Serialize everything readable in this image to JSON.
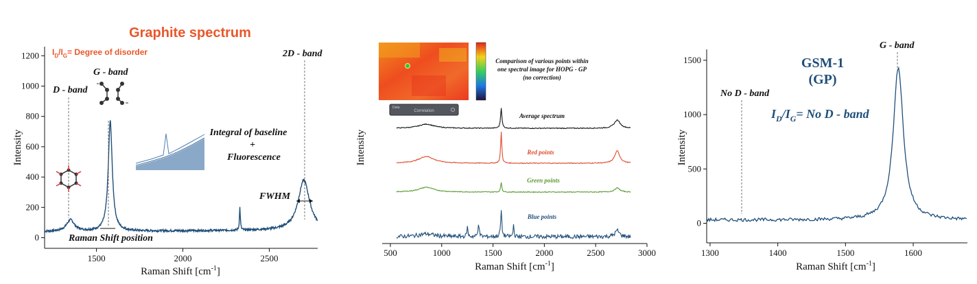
{
  "colors": {
    "series": "#1f4e79",
    "orange": "#e8572a",
    "red": "#e04a2a",
    "green": "#5a9a32",
    "blue_title": "#1f4e79",
    "black": "#111111"
  },
  "chart_data": [
    {
      "type": "line",
      "title": "Graphite spectrum",
      "xlabel": "Raman Shift [cm",
      "xlabel_sup": "-1",
      "xlabel_end": "]",
      "ylabel": "Intensity",
      "xlim": [
        1200,
        2780
      ],
      "ylim": [
        -70,
        1260
      ],
      "xticks": [
        1500,
        2000,
        2500
      ],
      "yticks": [
        0,
        200,
        400,
        600,
        800,
        1000,
        1200
      ],
      "baseline": 40,
      "peaks": [
        {
          "center": 1350,
          "height": 75,
          "width": 28
        },
        {
          "center": 1580,
          "height": 725,
          "width": 14
        },
        {
          "center": 2330,
          "height": 150,
          "width": 3
        },
        {
          "center": 2700,
          "height": 330,
          "width": 40
        }
      ],
      "annotations": {
        "ratio_prefix": "I",
        "ratio_sub1": "D",
        "ratio_mid": "/I",
        "ratio_sub2": "G",
        "ratio_suffix": "= Degree of disorder",
        "g_band": "G - band",
        "d_band": "D - band",
        "band_2d": "2D - band",
        "integral_1": "Integral of baseline",
        "integral_2": "+",
        "integral_3": "Fluorescence",
        "fwhm": "FWHM",
        "raman_shift_position": "Raman Shift position"
      }
    },
    {
      "type": "line",
      "title": "",
      "xlabel": "Raman Shift [cm",
      "xlabel_sup": "-1",
      "xlabel_end": "]",
      "ylabel": "Intensity",
      "xlim": [
        420,
        3000
      ],
      "xticks": [
        500,
        1000,
        1500,
        2000,
        2500,
        3000
      ],
      "caption": [
        "Comparison of various points within",
        "one spectral image for HOPG - GP",
        "(no correction)"
      ],
      "button_label": "Correlation",
      "panel_label": "Data",
      "series": [
        {
          "name": "Average spectrum",
          "color": "#111111"
        },
        {
          "name": "Red points",
          "color": "#e04a2a"
        },
        {
          "name": "Green points",
          "color": "#5a9a32"
        },
        {
          "name": "Blue points",
          "color": "#1f4e79"
        }
      ]
    },
    {
      "type": "line",
      "title": "GSM-1",
      "subtitle": "(GP)",
      "xlabel": "Raman Shift [cm",
      "xlabel_sup": "-1",
      "xlabel_end": "]",
      "ylabel": "Intensity",
      "xlim": [
        1295,
        1680
      ],
      "ylim": [
        -180,
        1600
      ],
      "xticks": [
        1300,
        1400,
        1500,
        1600
      ],
      "yticks": [
        0,
        500,
        1000,
        1500
      ],
      "baseline": 30,
      "peaks": [
        {
          "center": 1578,
          "height": 1410,
          "width": 9
        }
      ],
      "annotations": {
        "g_band": "G - band",
        "no_d_band": "No D - band",
        "ratio_prefix": "I",
        "ratio_sub1": "D",
        "ratio_mid": "/I",
        "ratio_sub2": "G",
        "ratio_suffix": "= No D - band"
      }
    }
  ]
}
